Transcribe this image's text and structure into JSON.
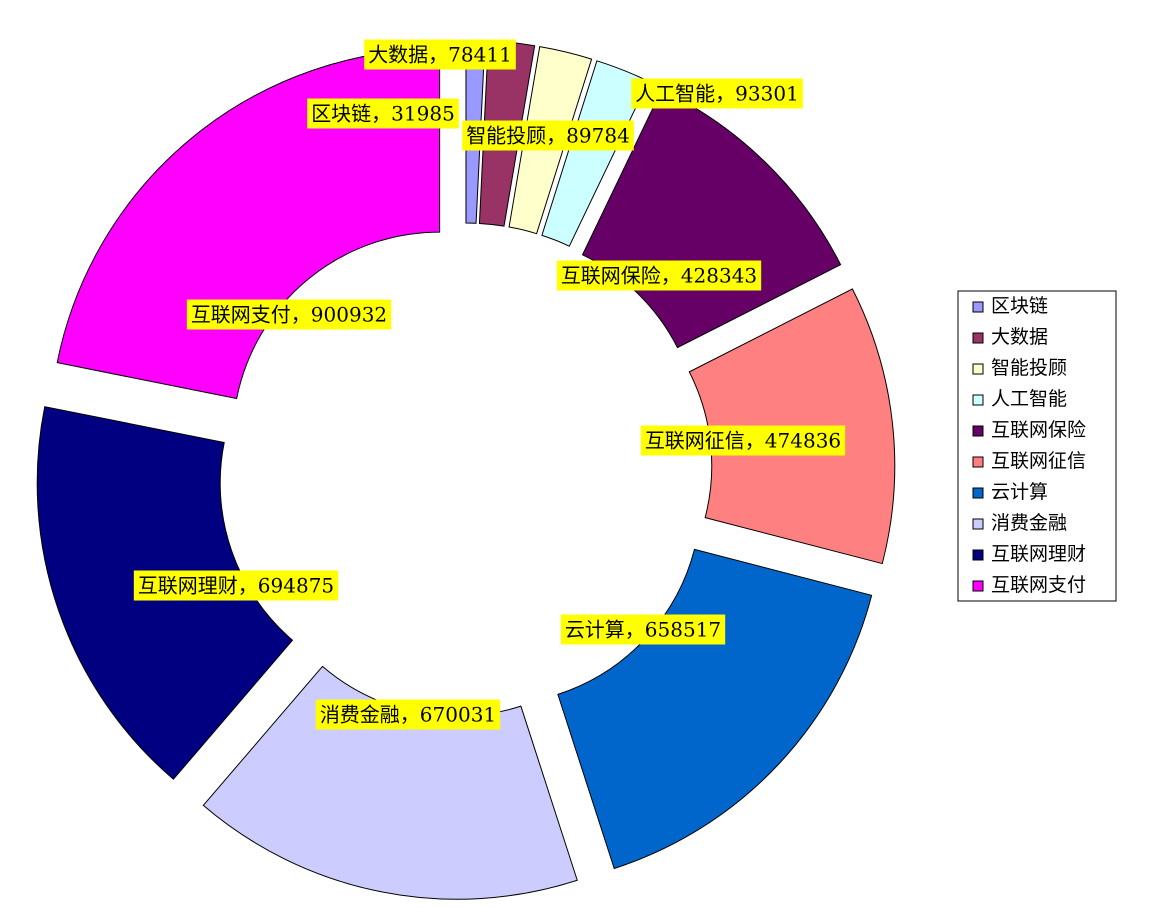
{
  "chart_data": {
    "type": "donut",
    "categories": [
      "区块链",
      "大数据",
      "智能投顾",
      "人工智能",
      "互联网保险",
      "互联网征信",
      "云计算",
      "消费金融",
      "互联网理财",
      "互联网支付"
    ],
    "values": [
      31985,
      78411,
      89784,
      93301,
      428343,
      474836,
      658517,
      670031,
      694875,
      900932
    ],
    "value_labels": [
      "区块链，31985",
      "大数据，78411",
      "智能投顾，89784",
      "人工智能，93301",
      "互联网保险，428343",
      "互联网征信，474836",
      "云计算，658517",
      "消费金融，670031",
      "互联网理财，694875",
      "互联网支付，900932"
    ],
    "colors": [
      "#9999ff",
      "#993366",
      "#ffffcc",
      "#ccffff",
      "#660066",
      "#ff8080",
      "#0066cc",
      "#ccccff",
      "#000080",
      "#ff00ff"
    ],
    "legend": "right"
  }
}
